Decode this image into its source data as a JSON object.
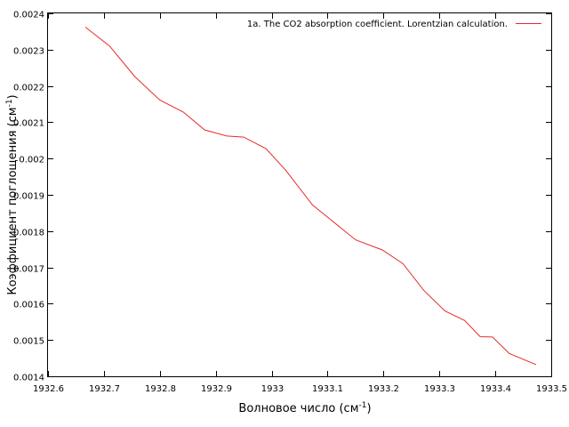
{
  "chart_data": {
    "type": "line",
    "xlabel": "Волновое число (см",
    "xlabel_sup": "-1",
    "xlabel_close": ")",
    "ylabel": "Коэффициент поглощения (см",
    "ylabel_sup": "-1",
    "ylabel_close": ")",
    "xlim": [
      1932.6,
      1933.5
    ],
    "ylim": [
      0.0014,
      0.0024
    ],
    "xticks": [
      "1932.6",
      "1932.7",
      "1932.8",
      "1932.9",
      "1933",
      "1933.1",
      "1933.2",
      "1933.3",
      "1933.4",
      "1933.5"
    ],
    "yticks": [
      "0.0014",
      "0.0015",
      "0.0016",
      "0.0017",
      "0.0018",
      "0.0019",
      "0.002",
      "0.0021",
      "0.0022",
      "0.0023",
      "0.0024"
    ],
    "legend_position": "top-right",
    "grid": false,
    "series": [
      {
        "name": "1a. The CO2 absorption coefficient. Lorentzian calculation.",
        "color": "#e8292a",
        "x": [
          1932.667,
          1932.71,
          1932.755,
          1932.8,
          1932.842,
          1932.88,
          1932.92,
          1932.95,
          1932.99,
          1933.025,
          1933.073,
          1933.107,
          1933.15,
          1933.198,
          1933.235,
          1933.272,
          1933.31,
          1933.345,
          1933.373,
          1933.395,
          1933.425,
          1933.473
        ],
        "y": [
          0.002362,
          0.00231,
          0.002226,
          0.002161,
          0.002128,
          0.002079,
          0.002062,
          0.002059,
          0.002027,
          0.001968,
          0.001872,
          0.00183,
          0.001776,
          0.001748,
          0.00171,
          0.001637,
          0.00158,
          0.001554,
          0.001509,
          0.001508,
          0.001463,
          0.001432
        ]
      }
    ]
  }
}
